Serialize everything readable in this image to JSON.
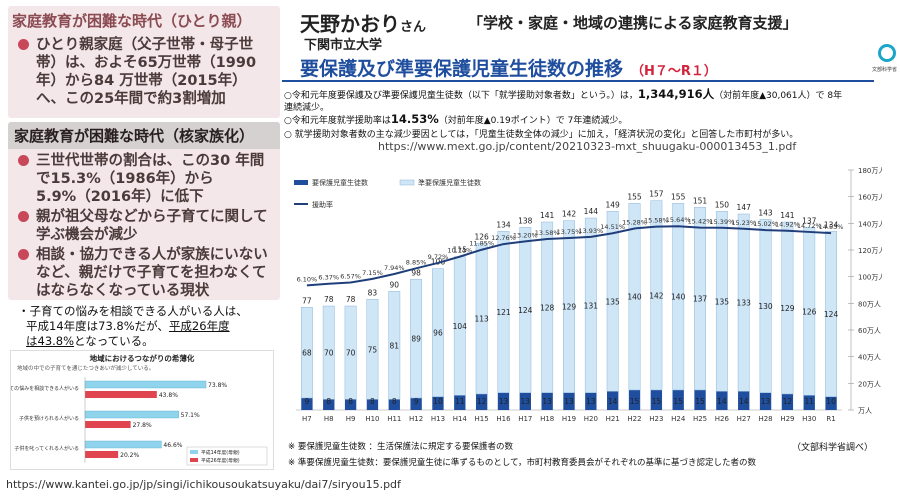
{
  "left_panels": {
    "panel1": {
      "title": "家庭教育が困難な時代（ひとり親）",
      "bullets": [
        "ひとり親家庭（父子世帯・母子世帯）は、およそ65万世帯（1990年）から84 万世帯（2015年）へ、この25年間で約3割増加"
      ]
    },
    "panel2": {
      "title": "家庭教育が困難な時代（核家族化）",
      "bullets": [
        "三世代世帯の割合は、この30 年間で15.3%（1986年）から5.9%（2016年）に低下",
        "親が祖父母などから子育てに関して学ぶ機会が減少",
        "相談・協力できる人が家族にいないなど、親だけで子育てを担わなくてはならなくなっている現状"
      ]
    },
    "kaigo_text": {
      "line1": "・子育ての悩みを相談できる人がいる人は、",
      "line2_a": "平成14年度は73.8%だが、",
      "line2_b": "平成26年度",
      "line3_a": "は43.8%",
      "line3_b": "となっている。"
    },
    "mini_chart": {
      "title": "地域におけるつながりの希薄化",
      "subtitle": "地域の中での子育てを通じたつきあいが減少している。",
      "categories": [
        "子育ての悩みを相談できる人がいる",
        "子供を預けられる人がいる",
        "子供を叱ってくれる人がいる"
      ],
      "series": [
        {
          "name": "平成14年度(母親)",
          "values": [
            73.8,
            57.1,
            46.6
          ],
          "color": "#8fd3ec"
        },
        {
          "name": "平成26年度(母親)",
          "values": [
            43.8,
            27.8,
            20.2
          ],
          "color": "#e0454f"
        }
      ],
      "labels_a": [
        "73.8%",
        "57.1%",
        "46.6%"
      ],
      "labels_b": [
        "43.8%",
        "27.8%",
        "20.2%"
      ]
    }
  },
  "header": {
    "author": "天野かおり",
    "author_suffix": "さん",
    "talk_title": "「学校・家庭・地域の連携による家庭教育支援」",
    "university": "下関市立大学",
    "main_title": "要保護及び準要保護児童生徒数の推移",
    "main_title_era": "（H７～R１）",
    "logo_text": "文部科学省"
  },
  "notes": {
    "line1_a": "○令和元年度要保護及び準要保護児童生徒数（以下「就学援助対象者数」という。）は，",
    "line1_b": "1,344,916人",
    "line1_c": "（対前年度▲30,061人）で 8年",
    "line1_d": "連続減少。",
    "line2_a": "○令和元年度就学援助率は",
    "line2_b": "14.53%",
    "line2_c": "（対前年度▲0.19ポイント）で 7年連続減少。",
    "line3": "○ 就学援助対象者数の主な減少要因としては，「児童生徒数全体の減少」に加え，「経済状況の変化」と回答した市町村が多い。",
    "url1": "https://www.mext.go.jp/content/20210323-mxt_shuugaku-000013453_1.pdf",
    "url2": "https://www.kantei.go.jp/jp/singi/ichikousoukatsuyaku/dai7/siryou15.pdf"
  },
  "chart_data": {
    "type": "bar",
    "categories": [
      "H7",
      "H8",
      "H9",
      "H10",
      "H11",
      "H12",
      "H13",
      "H14",
      "H15",
      "H16",
      "H17",
      "H18",
      "H19",
      "H20",
      "H21",
      "H22",
      "H23",
      "H24",
      "H25",
      "H26",
      "H27",
      "H28",
      "H29",
      "H30",
      "R1"
    ],
    "series": [
      {
        "name": "要保護児童生徒数",
        "values": [
          9,
          8,
          8,
          8,
          8,
          9,
          10,
          11,
          12,
          13,
          13,
          13,
          13,
          13,
          14,
          15,
          15,
          15,
          15,
          14,
          14,
          13,
          12,
          11,
          10
        ],
        "color": "#1f4e9e"
      },
      {
        "name": "準要保護児童生徒数",
        "values": [
          68,
          70,
          70,
          75,
          81,
          89,
          96,
          104,
          113,
          121,
          124,
          128,
          129,
          131,
          135,
          140,
          142,
          140,
          137,
          135,
          133,
          130,
          129,
          126,
          124
        ],
        "color": "#cfe6f7"
      },
      {
        "name": "援助率",
        "values": [
          6.1,
          6.37,
          6.57,
          7.15,
          7.94,
          8.85,
          9.72,
          10.74,
          11.85,
          12.76,
          13.2,
          13.58,
          13.75,
          13.93,
          14.51,
          15.28,
          15.58,
          15.64,
          15.42,
          15.39,
          15.23,
          15.02,
          14.92,
          14.72,
          14.53
        ],
        "color": "#1f3e7a"
      }
    ],
    "totals": [
      77,
      78,
      78,
      83,
      90,
      98,
      106,
      115,
      126,
      134,
      138,
      141,
      142,
      144,
      149,
      155,
      157,
      155,
      151,
      150,
      147,
      143,
      141,
      137,
      134
    ],
    "rate_labels": [
      "6.10%",
      "6.37%",
      "6.57%",
      "7.15%",
      "7.94%",
      "8.85%",
      "9.72%",
      "10.74%",
      "11.85%",
      "12.76%",
      "13.20%",
      "13.58%",
      "13.75%",
      "13.93%",
      "14.51%",
      "15.28%",
      "15.58%",
      "15.64%",
      "15.42%",
      "15.39%",
      "15.23%",
      "15.02%",
      "14.92%",
      "14.72%",
      "14.53%"
    ],
    "y_ticks": [
      "万人",
      "20万人",
      "40万人",
      "60万人",
      "80万人",
      "100万人",
      "120万人",
      "140万人",
      "160万人",
      "180万人"
    ],
    "ylim": [
      0,
      180
    ],
    "legend_position": "top-left"
  },
  "footnotes": {
    "foot1": "※ 要保護児童生徒数 ：生活保護法に規定する要保護者の数",
    "foot2": "※ 準要保護児童生徒数：要保護児童生徒に準ずるものとして，市町村教育委員会がそれぞれの基準に基づき認定した者の数",
    "source": "（文部科学省調べ）"
  }
}
